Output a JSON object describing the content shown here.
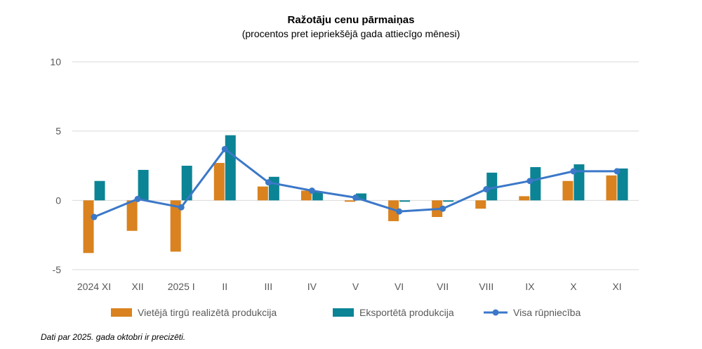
{
  "chart_data": {
    "type": "bar",
    "title": "Ražotāju cenu pārmaiņas",
    "subtitle": "(procentos pret iepriekšējā gada attiecīgo mēnesi)",
    "categories": [
      "2024 XI",
      "XII",
      "2025 I",
      "II",
      "III",
      "IV",
      "V",
      "VI",
      "VII",
      "VIII",
      "IX",
      "X",
      "XI"
    ],
    "ylim": [
      -5,
      10
    ],
    "yticks": [
      -5,
      0,
      5,
      10
    ],
    "grid": true,
    "legend_position": "bottom",
    "series": [
      {
        "name": "Vietējā tirgū realizētā produkcija",
        "kind": "bar",
        "color": "#D9821F",
        "values": [
          -3.8,
          -2.2,
          -3.7,
          2.7,
          1.0,
          0.7,
          -0.1,
          -1.5,
          -1.2,
          -0.6,
          0.3,
          1.4,
          1.8
        ]
      },
      {
        "name": "Eksportētā produkcija",
        "kind": "bar",
        "color": "#0B8495",
        "values": [
          1.4,
          2.2,
          2.5,
          4.7,
          1.7,
          0.6,
          0.5,
          -0.1,
          -0.1,
          2.0,
          2.4,
          2.6,
          2.3
        ]
      },
      {
        "name": "Visa rūpniecība",
        "kind": "line",
        "color": "#3B78C8",
        "values": [
          -1.2,
          0.1,
          -0.5,
          3.7,
          1.3,
          0.7,
          0.2,
          -0.8,
          -0.6,
          0.8,
          1.4,
          2.1,
          2.1
        ]
      }
    ]
  },
  "footnote": "Dati par 2025. gada oktobri ir precizēti."
}
